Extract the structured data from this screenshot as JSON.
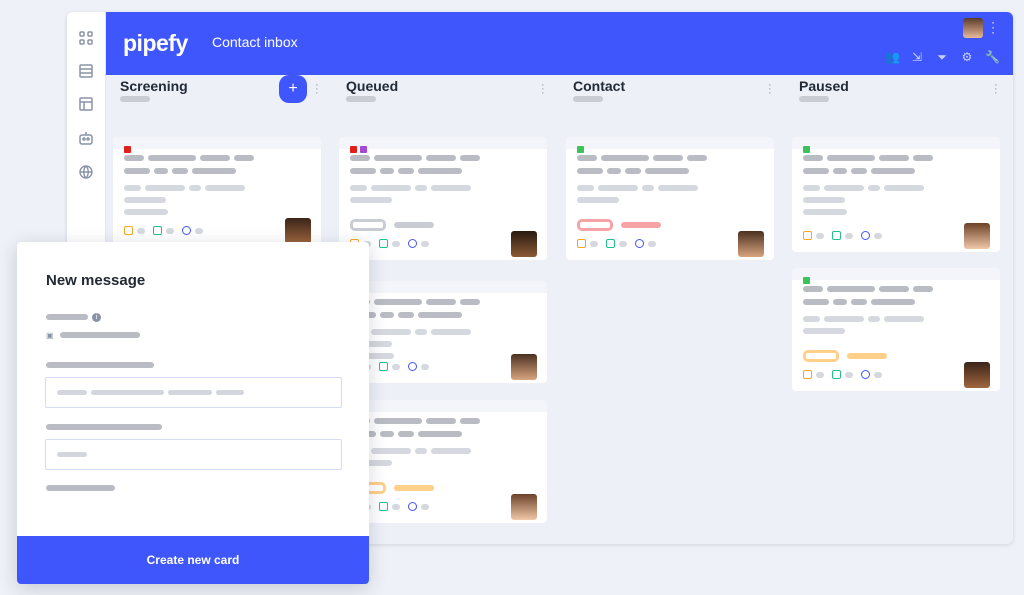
{
  "header": {
    "logo": "pipefy",
    "title": "Contact inbox",
    "icons": [
      "members-icon",
      "import-icon",
      "filter-icon",
      "settings-icon",
      "wrench-icon"
    ]
  },
  "sidebar": {
    "icons": [
      "apps-icon",
      "database-icon",
      "layout-icon",
      "bot-icon",
      "globe-icon"
    ]
  },
  "colors": {
    "brand": "#3f56fd",
    "red": "#e0201b",
    "purple": "#a64ad6",
    "green": "#3cc25a",
    "pink": "#f6a3a6",
    "orange": "#ffd08a"
  },
  "columns": [
    {
      "name": "Screening",
      "add": "+",
      "cards": [
        {
          "tags": [
            "#e0201b"
          ],
          "pill": null
        }
      ]
    },
    {
      "name": "Queued",
      "cards": [
        {
          "tags": [
            "#e0201b",
            "#a64ad6"
          ],
          "pill": "#c9ccd3"
        },
        {
          "tags": [],
          "pill": null
        },
        {
          "tags": [],
          "pill": "#ffd08a"
        }
      ]
    },
    {
      "name": "Contact",
      "cards": [
        {
          "tags": [
            "#3cc25a"
          ],
          "pill": "#f6a3a6"
        }
      ]
    },
    {
      "name": "Paused",
      "cards": [
        {
          "tags": [
            "#3cc25a"
          ],
          "pill": null
        },
        {
          "tags": [
            "#3cc25a"
          ],
          "pill": "#ffd08a"
        }
      ]
    }
  ],
  "modal": {
    "title": "New message",
    "button": "Create new card"
  }
}
